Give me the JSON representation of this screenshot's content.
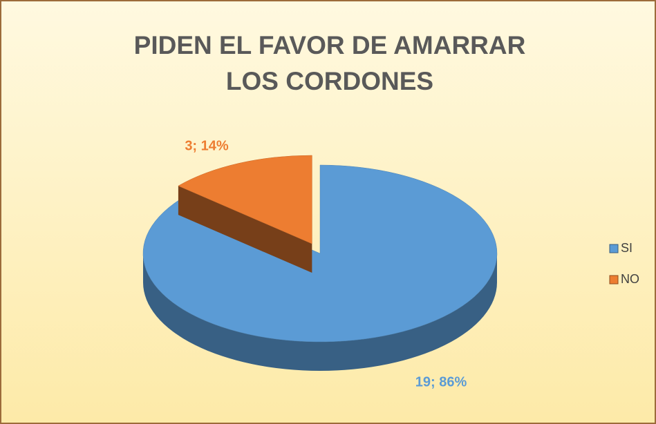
{
  "chart_data": {
    "type": "pie",
    "title": "PIDEN EL FAVOR DE AMARRAR LOS CORDONES",
    "categories": [
      "SI",
      "NO"
    ],
    "values": [
      19,
      3
    ],
    "value_labels": [
      "19; 86%",
      "3; 14%"
    ],
    "colors": [
      "#5b9bd5",
      "#ed7d31"
    ],
    "legend": "right",
    "explode": [
      false,
      true
    ]
  }
}
